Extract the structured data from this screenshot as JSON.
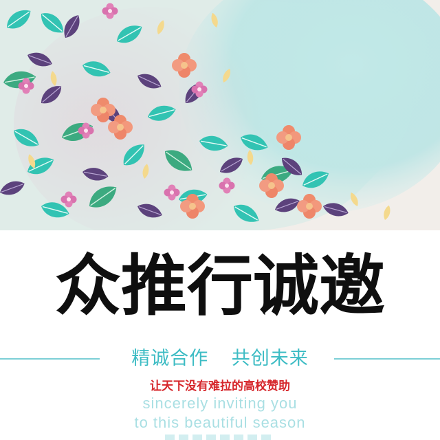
{
  "headline": "众推行诚邀",
  "tagline": {
    "left": "精诚合作",
    "right": "共创未来"
  },
  "slogan_cn": "让天下没有难拉的高校赞助",
  "slogan_en_line1": "sincerely inviting you",
  "slogan_en_line2": "to this beautiful season",
  "colors": {
    "headline": "#0f0f0f",
    "tagline": "#3dbcc4",
    "rule": "#7ccfd6",
    "slogan_cn": "#d6262b",
    "slogan_en": "#a9dfe3",
    "leaf_teal": "#2fc3b2",
    "leaf_purple": "#5a3f7a",
    "flower_coral": "#f08a6a",
    "watercolor": "#8fdde0"
  }
}
